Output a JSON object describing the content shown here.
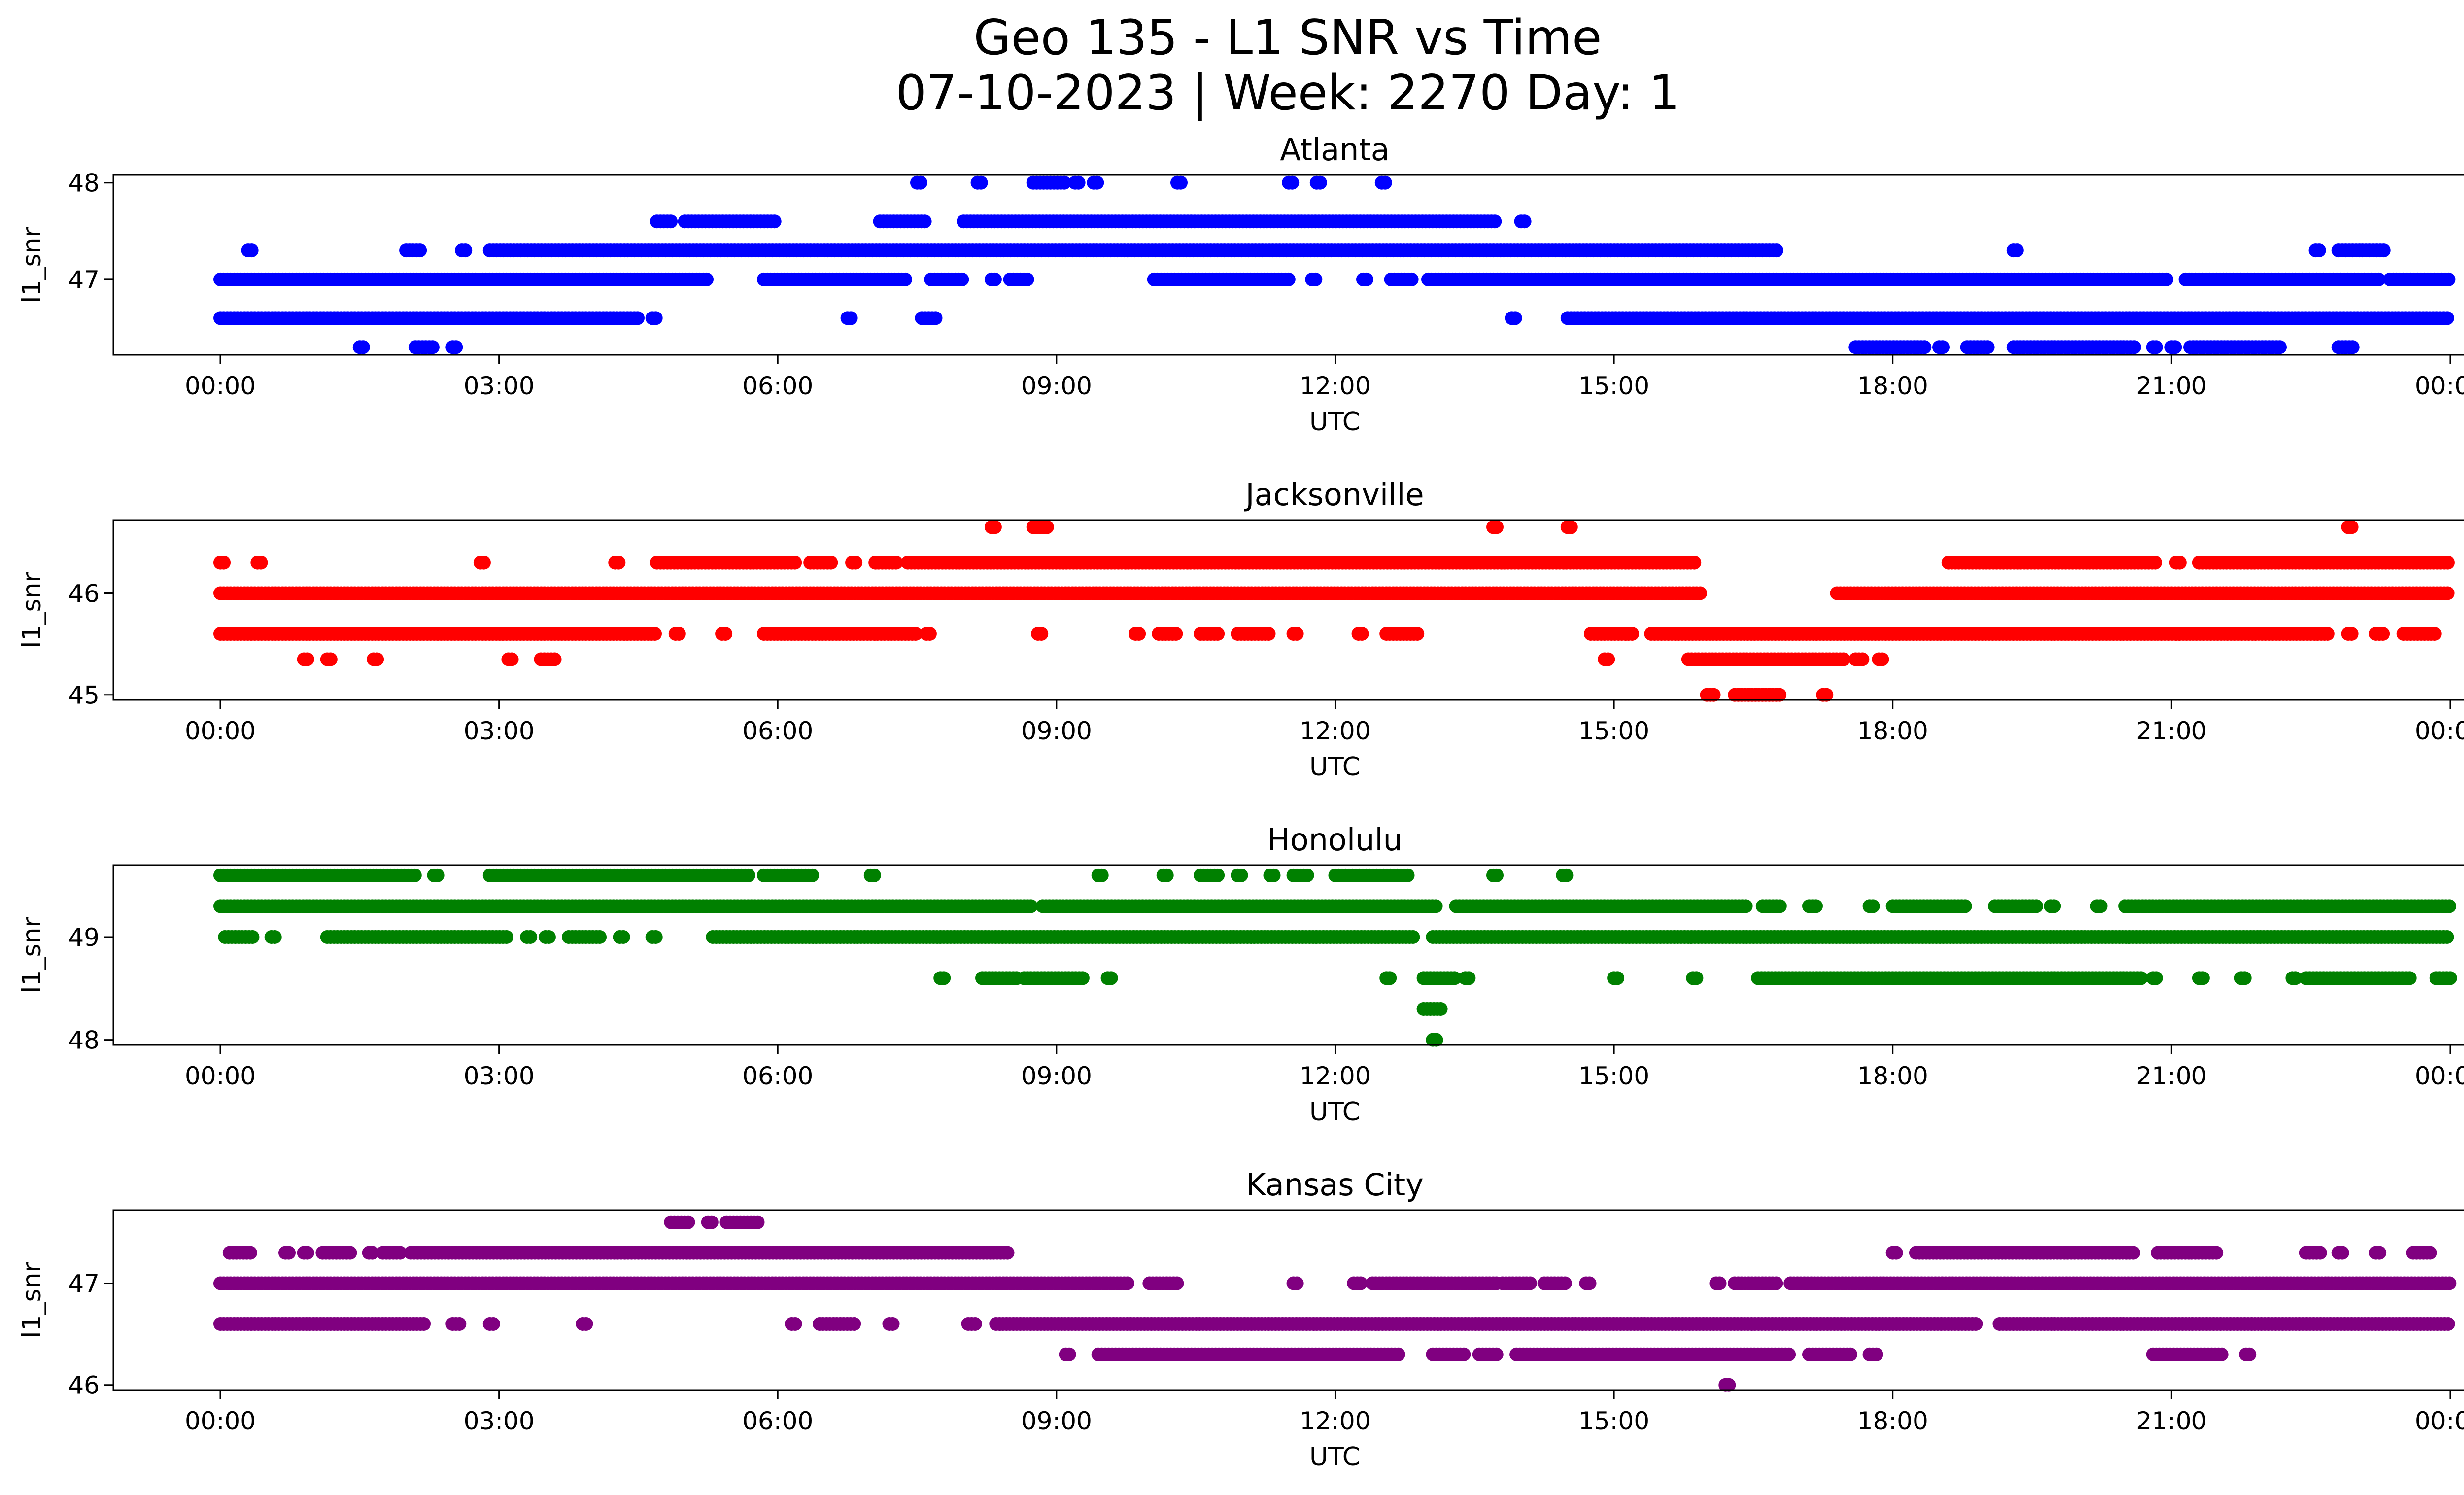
{
  "title_line1": "Geo 135 - L1 SNR vs Time",
  "title_line2": "07-10-2023 | Week: 2270 Day: 1",
  "chart_data": [
    {
      "type": "scatter",
      "title": "Atlanta",
      "xlabel": "UTC",
      "ylabel": "l1_snr",
      "color": "#0000ff",
      "xticks": [
        "00:00",
        "03:00",
        "06:00",
        "09:00",
        "12:00",
        "15:00",
        "18:00",
        "21:00",
        "00:00"
      ],
      "yticks": [
        47,
        48
      ],
      "ylim": [
        46.22,
        48.08
      ],
      "series": [
        {
          "y": 48.0,
          "ranges": [
            [
              7.5,
              7.55
            ],
            [
              8.15,
              8.2
            ],
            [
              8.75,
              9.1
            ],
            [
              9.2,
              9.25
            ],
            [
              9.4,
              9.45
            ],
            [
              10.3,
              10.35
            ],
            [
              11.5,
              11.55
            ],
            [
              11.8,
              11.85
            ],
            [
              12.5,
              12.55
            ]
          ]
        },
        {
          "y": 47.6,
          "ranges": [
            [
              4.7,
              4.85
            ],
            [
              5.0,
              6.0
            ],
            [
              7.1,
              7.6
            ],
            [
              8.0,
              13.75
            ],
            [
              14.0,
              14.05
            ]
          ]
        },
        {
          "y": 47.3,
          "ranges": [
            [
              0.3,
              0.35
            ],
            [
              2.0,
              2.15
            ],
            [
              2.6,
              2.65
            ],
            [
              2.9,
              16.75
            ],
            [
              19.3,
              19.35
            ],
            [
              22.55,
              22.6
            ],
            [
              22.8,
              23.3
            ]
          ]
        },
        {
          "y": 47.0,
          "ranges": [
            [
              0.0,
              5.25
            ],
            [
              5.85,
              7.4
            ],
            [
              7.65,
              8.0
            ],
            [
              8.3,
              8.35
            ],
            [
              8.5,
              8.7
            ],
            [
              10.05,
              11.5
            ],
            [
              11.75,
              11.8
            ],
            [
              12.3,
              12.35
            ],
            [
              12.6,
              12.85
            ],
            [
              13.0,
              20.95
            ],
            [
              21.15,
              23.25
            ],
            [
              23.35,
              24.0
            ]
          ]
        },
        {
          "y": 46.6,
          "ranges": [
            [
              0.0,
              4.5
            ],
            [
              4.65,
              4.7
            ],
            [
              6.75,
              6.8
            ],
            [
              7.55,
              7.7
            ],
            [
              13.9,
              13.95
            ],
            [
              14.5,
              24.0
            ]
          ]
        },
        {
          "y": 46.3,
          "ranges": [
            [
              1.5,
              1.55
            ],
            [
              2.1,
              2.3
            ],
            [
              2.5,
              2.55
            ],
            [
              17.6,
              18.35
            ],
            [
              18.5,
              18.55
            ],
            [
              18.8,
              19.05
            ],
            [
              19.3,
              20.6
            ],
            [
              20.8,
              20.85
            ],
            [
              21.0,
              21.05
            ],
            [
              21.2,
              22.2
            ],
            [
              22.8,
              22.95
            ]
          ]
        }
      ]
    },
    {
      "type": "scatter",
      "title": "Jacksonville",
      "xlabel": "UTC",
      "ylabel": "l1_snr",
      "color": "#ff0000",
      "xticks": [
        "00:00",
        "03:00",
        "06:00",
        "09:00",
        "12:00",
        "15:00",
        "18:00",
        "21:00",
        "00:00"
      ],
      "yticks": [
        45,
        46
      ],
      "ylim": [
        44.95,
        46.72
      ],
      "series": [
        {
          "y": 46.65,
          "ranges": [
            [
              8.3,
              8.35
            ],
            [
              8.75,
              8.9
            ],
            [
              13.7,
              13.75
            ],
            [
              14.5,
              14.55
            ],
            [
              22.9,
              22.95
            ]
          ]
        },
        {
          "y": 46.3,
          "ranges": [
            [
              0.0,
              0.05
            ],
            [
              0.4,
              0.45
            ],
            [
              2.8,
              2.85
            ],
            [
              4.25,
              4.3
            ],
            [
              4.7,
              6.2
            ],
            [
              6.35,
              6.6
            ],
            [
              6.8,
              6.85
            ],
            [
              7.05,
              7.3
            ],
            [
              7.4,
              15.9
            ],
            [
              18.6,
              20.85
            ],
            [
              21.05,
              21.1
            ],
            [
              21.3,
              24.0
            ]
          ]
        },
        {
          "y": 46.0,
          "ranges": [
            [
              0.0,
              15.95
            ],
            [
              17.4,
              24.0
            ]
          ]
        },
        {
          "y": 45.6,
          "ranges": [
            [
              0.0,
              4.7
            ],
            [
              4.9,
              4.95
            ],
            [
              5.4,
              5.45
            ],
            [
              5.85,
              7.5
            ],
            [
              7.6,
              7.65
            ],
            [
              8.8,
              8.85
            ],
            [
              9.85,
              9.9
            ],
            [
              10.1,
              10.3
            ],
            [
              10.55,
              10.75
            ],
            [
              10.95,
              11.3
            ],
            [
              11.55,
              11.6
            ],
            [
              12.25,
              12.3
            ],
            [
              12.55,
              12.9
            ],
            [
              14.75,
              15.2
            ],
            [
              15.4,
              21.1
            ],
            [
              21.05,
              22.7
            ],
            [
              22.9,
              22.95
            ],
            [
              23.2,
              23.3
            ],
            [
              23.5,
              23.85
            ]
          ]
        },
        {
          "y": 45.35,
          "ranges": [
            [
              0.9,
              0.95
            ],
            [
              1.15,
              1.2
            ],
            [
              1.65,
              1.7
            ],
            [
              3.1,
              3.15
            ],
            [
              3.45,
              3.6
            ],
            [
              14.9,
              14.95
            ],
            [
              15.8,
              17.5
            ],
            [
              17.6,
              17.7
            ],
            [
              17.85,
              17.9
            ]
          ]
        },
        {
          "y": 45.0,
          "ranges": [
            [
              16.0,
              16.1
            ],
            [
              16.3,
              16.8
            ],
            [
              17.25,
              17.3
            ]
          ]
        }
      ]
    },
    {
      "type": "scatter",
      "title": "Honolulu",
      "xlabel": "UTC",
      "ylabel": "l1_snr",
      "color": "#008000",
      "xticks": [
        "00:00",
        "03:00",
        "06:00",
        "09:00",
        "12:00",
        "15:00",
        "18:00",
        "21:00",
        "00:00"
      ],
      "yticks": [
        48,
        49
      ],
      "ylim": [
        47.95,
        49.7
      ],
      "series": [
        {
          "y": 49.6,
          "ranges": [
            [
              0.0,
              1.45
            ],
            [
              1.5,
              2.1
            ],
            [
              2.3,
              2.35
            ],
            [
              2.9,
              5.7
            ],
            [
              5.85,
              6.4
            ],
            [
              7.0,
              7.05
            ],
            [
              9.45,
              9.5
            ],
            [
              10.15,
              10.2
            ],
            [
              10.55,
              10.75
            ],
            [
              10.95,
              11.0
            ],
            [
              11.3,
              11.35
            ],
            [
              11.55,
              11.7
            ],
            [
              12.0,
              12.8
            ],
            [
              13.7,
              13.75
            ],
            [
              14.45,
              14.5
            ]
          ]
        },
        {
          "y": 49.3,
          "ranges": [
            [
              0.0,
              8.75
            ],
            [
              8.85,
              13.1
            ],
            [
              13.3,
              16.45
            ],
            [
              16.6,
              16.8
            ],
            [
              17.1,
              17.2
            ],
            [
              17.75,
              17.8
            ],
            [
              18.0,
              18.8
            ],
            [
              19.1,
              19.55
            ],
            [
              19.7,
              19.75
            ],
            [
              20.2,
              20.25
            ],
            [
              20.5,
              24.0
            ]
          ]
        },
        {
          "y": 49.0,
          "ranges": [
            [
              0.05,
              0.35
            ],
            [
              0.55,
              0.6
            ],
            [
              1.15,
              3.1
            ],
            [
              3.3,
              3.35
            ],
            [
              3.5,
              3.55
            ],
            [
              3.75,
              4.1
            ],
            [
              4.3,
              4.35
            ],
            [
              4.65,
              4.7
            ],
            [
              5.3,
              12.85
            ],
            [
              13.05,
              24.0
            ]
          ]
        },
        {
          "y": 48.6,
          "ranges": [
            [
              7.75,
              7.8
            ],
            [
              8.2,
              8.6
            ],
            [
              8.65,
              9.3
            ],
            [
              9.55,
              9.6
            ],
            [
              12.55,
              12.6
            ],
            [
              12.95,
              13.3
            ],
            [
              13.4,
              13.45
            ],
            [
              15.0,
              15.05
            ],
            [
              15.85,
              15.9
            ],
            [
              16.55,
              20.7
            ],
            [
              20.8,
              20.85
            ],
            [
              21.3,
              21.35
            ],
            [
              21.75,
              21.8
            ],
            [
              22.3,
              22.35
            ],
            [
              22.45,
              23.6
            ],
            [
              23.85,
              24.0
            ]
          ]
        },
        {
          "y": 48.3,
          "ranges": [
            [
              12.95,
              13.15
            ]
          ]
        },
        {
          "y": 48.0,
          "ranges": [
            [
              13.05,
              13.1
            ]
          ]
        }
      ]
    },
    {
      "type": "scatter",
      "title": "Kansas City",
      "xlabel": "UTC",
      "ylabel": "l1_snr",
      "color": "#800080",
      "xticks": [
        "00:00",
        "03:00",
        "06:00",
        "09:00",
        "12:00",
        "15:00",
        "18:00",
        "21:00",
        "00:00"
      ],
      "yticks": [
        46,
        47
      ],
      "ylim": [
        45.95,
        47.72
      ],
      "series": [
        {
          "y": 47.6,
          "ranges": [
            [
              4.85,
              5.05
            ],
            [
              5.25,
              5.3
            ],
            [
              5.45,
              5.8
            ]
          ]
        },
        {
          "y": 47.3,
          "ranges": [
            [
              0.1,
              0.35
            ],
            [
              0.7,
              0.75
            ],
            [
              0.9,
              0.95
            ],
            [
              1.1,
              1.4
            ],
            [
              1.6,
              1.65
            ],
            [
              1.75,
              1.95
            ],
            [
              2.05,
              8.5
            ],
            [
              18.0,
              18.05
            ],
            [
              18.25,
              20.6
            ],
            [
              20.85,
              21.5
            ],
            [
              22.45,
              22.6
            ],
            [
              22.8,
              22.85
            ],
            [
              23.2,
              23.25
            ],
            [
              23.6,
              23.8
            ]
          ]
        },
        {
          "y": 47.0,
          "ranges": [
            [
              0.0,
              9.8
            ],
            [
              10.0,
              10.3
            ],
            [
              11.55,
              11.6
            ],
            [
              12.2,
              12.3
            ],
            [
              12.4,
              13.75
            ],
            [
              13.8,
              14.1
            ],
            [
              14.25,
              14.5
            ],
            [
              14.7,
              14.75
            ],
            [
              16.1,
              16.15
            ],
            [
              16.3,
              16.75
            ],
            [
              16.9,
              24.0
            ]
          ]
        },
        {
          "y": 46.6,
          "ranges": [
            [
              0.0,
              2.2
            ],
            [
              2.5,
              2.6
            ],
            [
              2.9,
              2.95
            ],
            [
              3.9,
              3.95
            ],
            [
              6.15,
              6.2
            ],
            [
              6.45,
              6.85
            ],
            [
              7.2,
              7.25
            ],
            [
              8.05,
              8.15
            ],
            [
              8.35,
              18.9
            ],
            [
              19.15,
              24.0
            ]
          ]
        },
        {
          "y": 46.3,
          "ranges": [
            [
              9.1,
              9.15
            ],
            [
              9.45,
              12.7
            ],
            [
              13.05,
              13.4
            ],
            [
              13.55,
              13.75
            ],
            [
              13.95,
              16.9
            ],
            [
              17.1,
              17.55
            ],
            [
              17.75,
              17.85
            ],
            [
              20.8,
              21.55
            ],
            [
              21.8,
              21.85
            ]
          ]
        },
        {
          "y": 46.0,
          "ranges": [
            [
              16.2,
              16.25
            ]
          ]
        }
      ]
    }
  ]
}
